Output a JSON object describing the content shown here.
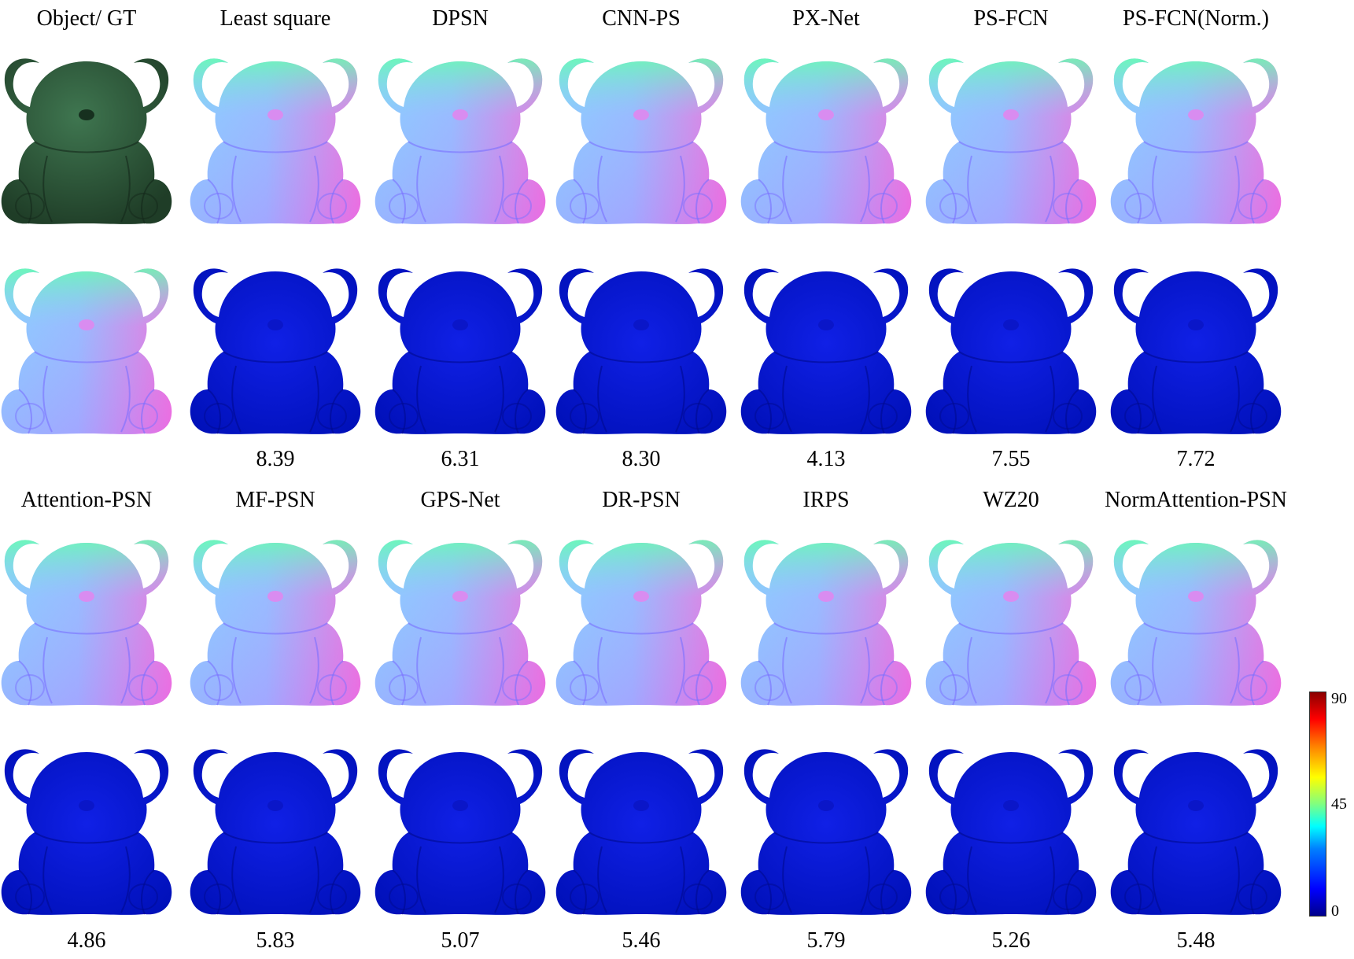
{
  "rows": [
    {
      "titles": [
        "Object/ GT",
        "Least square",
        "DPSN",
        "CNN-PS",
        "PX-Net",
        "PS-FCN",
        "PS-FCN(Norm.)"
      ],
      "errors": [
        "",
        "8.39",
        "6.31",
        "8.30",
        "4.13",
        "7.55",
        "7.72"
      ]
    },
    {
      "titles": [
        "Attention-PSN",
        "MF-PSN",
        "GPS-Net",
        "DR-PSN",
        "IRPS",
        "WZ20",
        "NormAttention-PSN"
      ],
      "errors": [
        "4.86",
        "5.83",
        "5.07",
        "5.46",
        "5.79",
        "5.26",
        "5.48"
      ]
    }
  ],
  "colorbar": {
    "max": "90",
    "mid": "45",
    "min": "0"
  },
  "colors": {
    "object": "#2f5a3a",
    "error_fill": "#0d1bd6",
    "error_dark": "#000a90"
  }
}
